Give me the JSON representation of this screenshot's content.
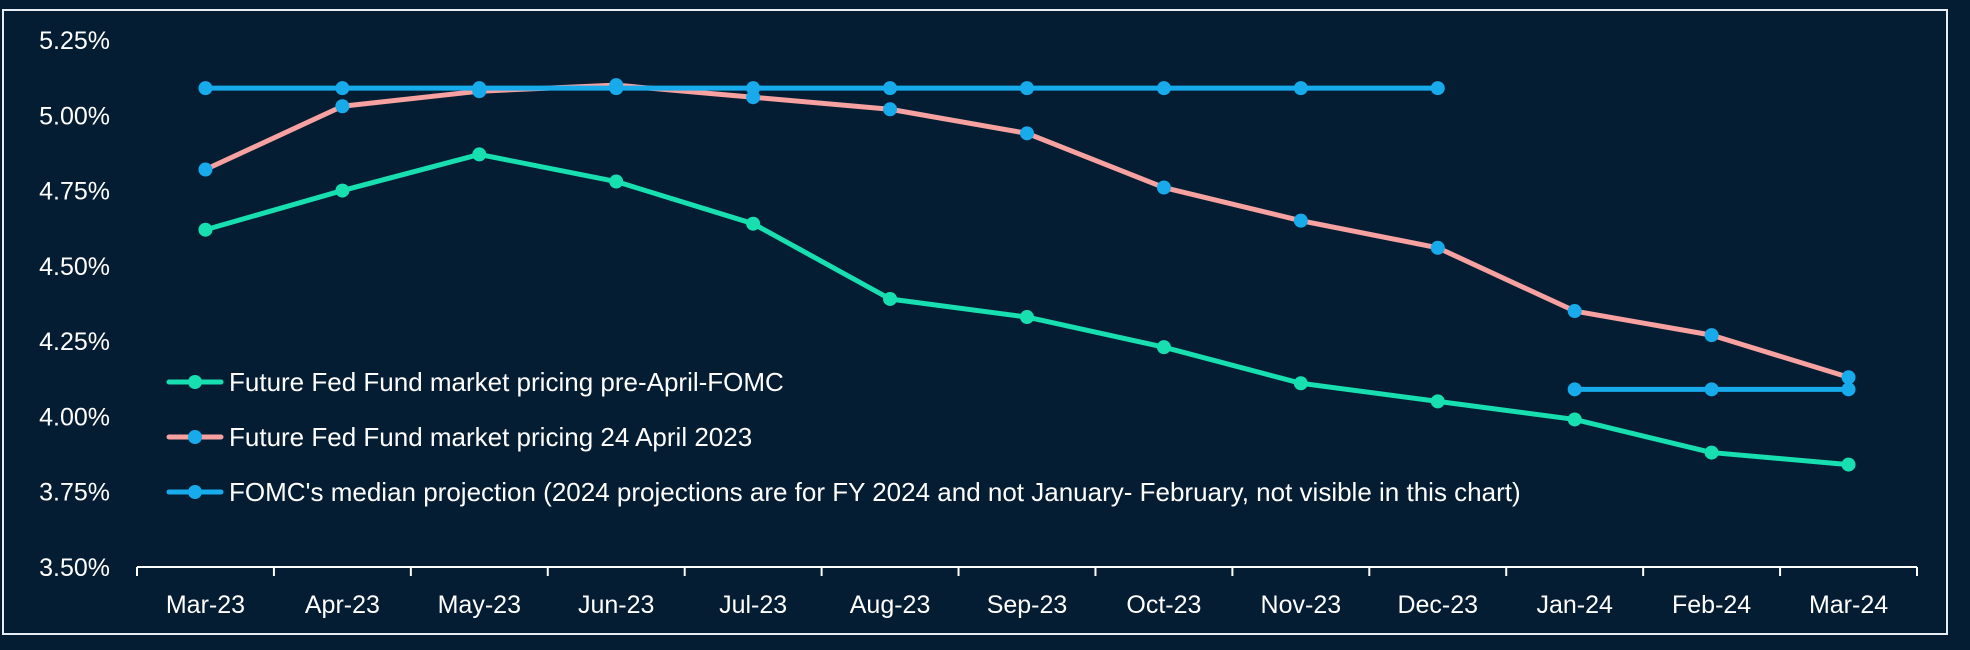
{
  "colors": {
    "background": "#041d33",
    "frame": "#e6edf3",
    "axis": "#ffffff",
    "text": "#ffffff"
  },
  "chart_data": {
    "type": "line",
    "categories": [
      "Mar-23",
      "Apr-23",
      "May-23",
      "Jun-23",
      "Jul-23",
      "Aug-23",
      "Sep-23",
      "Oct-23",
      "Nov-23",
      "Dec-23",
      "Jan-24",
      "Feb-24",
      "Mar-24"
    ],
    "ylim": [
      3.5,
      5.25
    ],
    "yticks": [
      3.5,
      3.75,
      4.0,
      4.25,
      4.5,
      4.75,
      5.0,
      5.25
    ],
    "ytick_labels": [
      "3.50%",
      "3.75%",
      "4.00%",
      "4.25%",
      "4.50%",
      "4.75%",
      "5.00%",
      "5.25%"
    ],
    "grid": false,
    "legend_position": "bottom-left inside plot",
    "series": [
      {
        "name": "Future Fed Fund market pricing pre-April-FOMC",
        "color": "#17dfb0",
        "marker_color": "#17dfb0",
        "values": [
          4.62,
          4.75,
          4.87,
          4.78,
          4.64,
          4.39,
          4.33,
          4.23,
          4.11,
          4.05,
          3.99,
          3.88,
          3.84
        ]
      },
      {
        "name": "Future Fed Fund market pricing 24 April 2023",
        "color": "#f7a1a1",
        "marker_color": "#17abeb",
        "values": [
          4.82,
          5.03,
          5.08,
          5.1,
          5.06,
          5.02,
          4.94,
          4.76,
          4.65,
          4.56,
          4.35,
          4.27,
          4.13
        ]
      },
      {
        "name": "FOMC's median projection (2024 projections are for FY 2024 and not January- February, not visible in this chart)",
        "color": "#17abeb",
        "marker_color": "#17abeb",
        "values": [
          5.09,
          5.09,
          5.09,
          5.09,
          5.09,
          5.09,
          5.09,
          5.09,
          5.09,
          5.09,
          4.09,
          4.09,
          4.09
        ],
        "segments": [
          [
            0,
            9
          ],
          [
            10,
            12
          ]
        ]
      }
    ]
  }
}
